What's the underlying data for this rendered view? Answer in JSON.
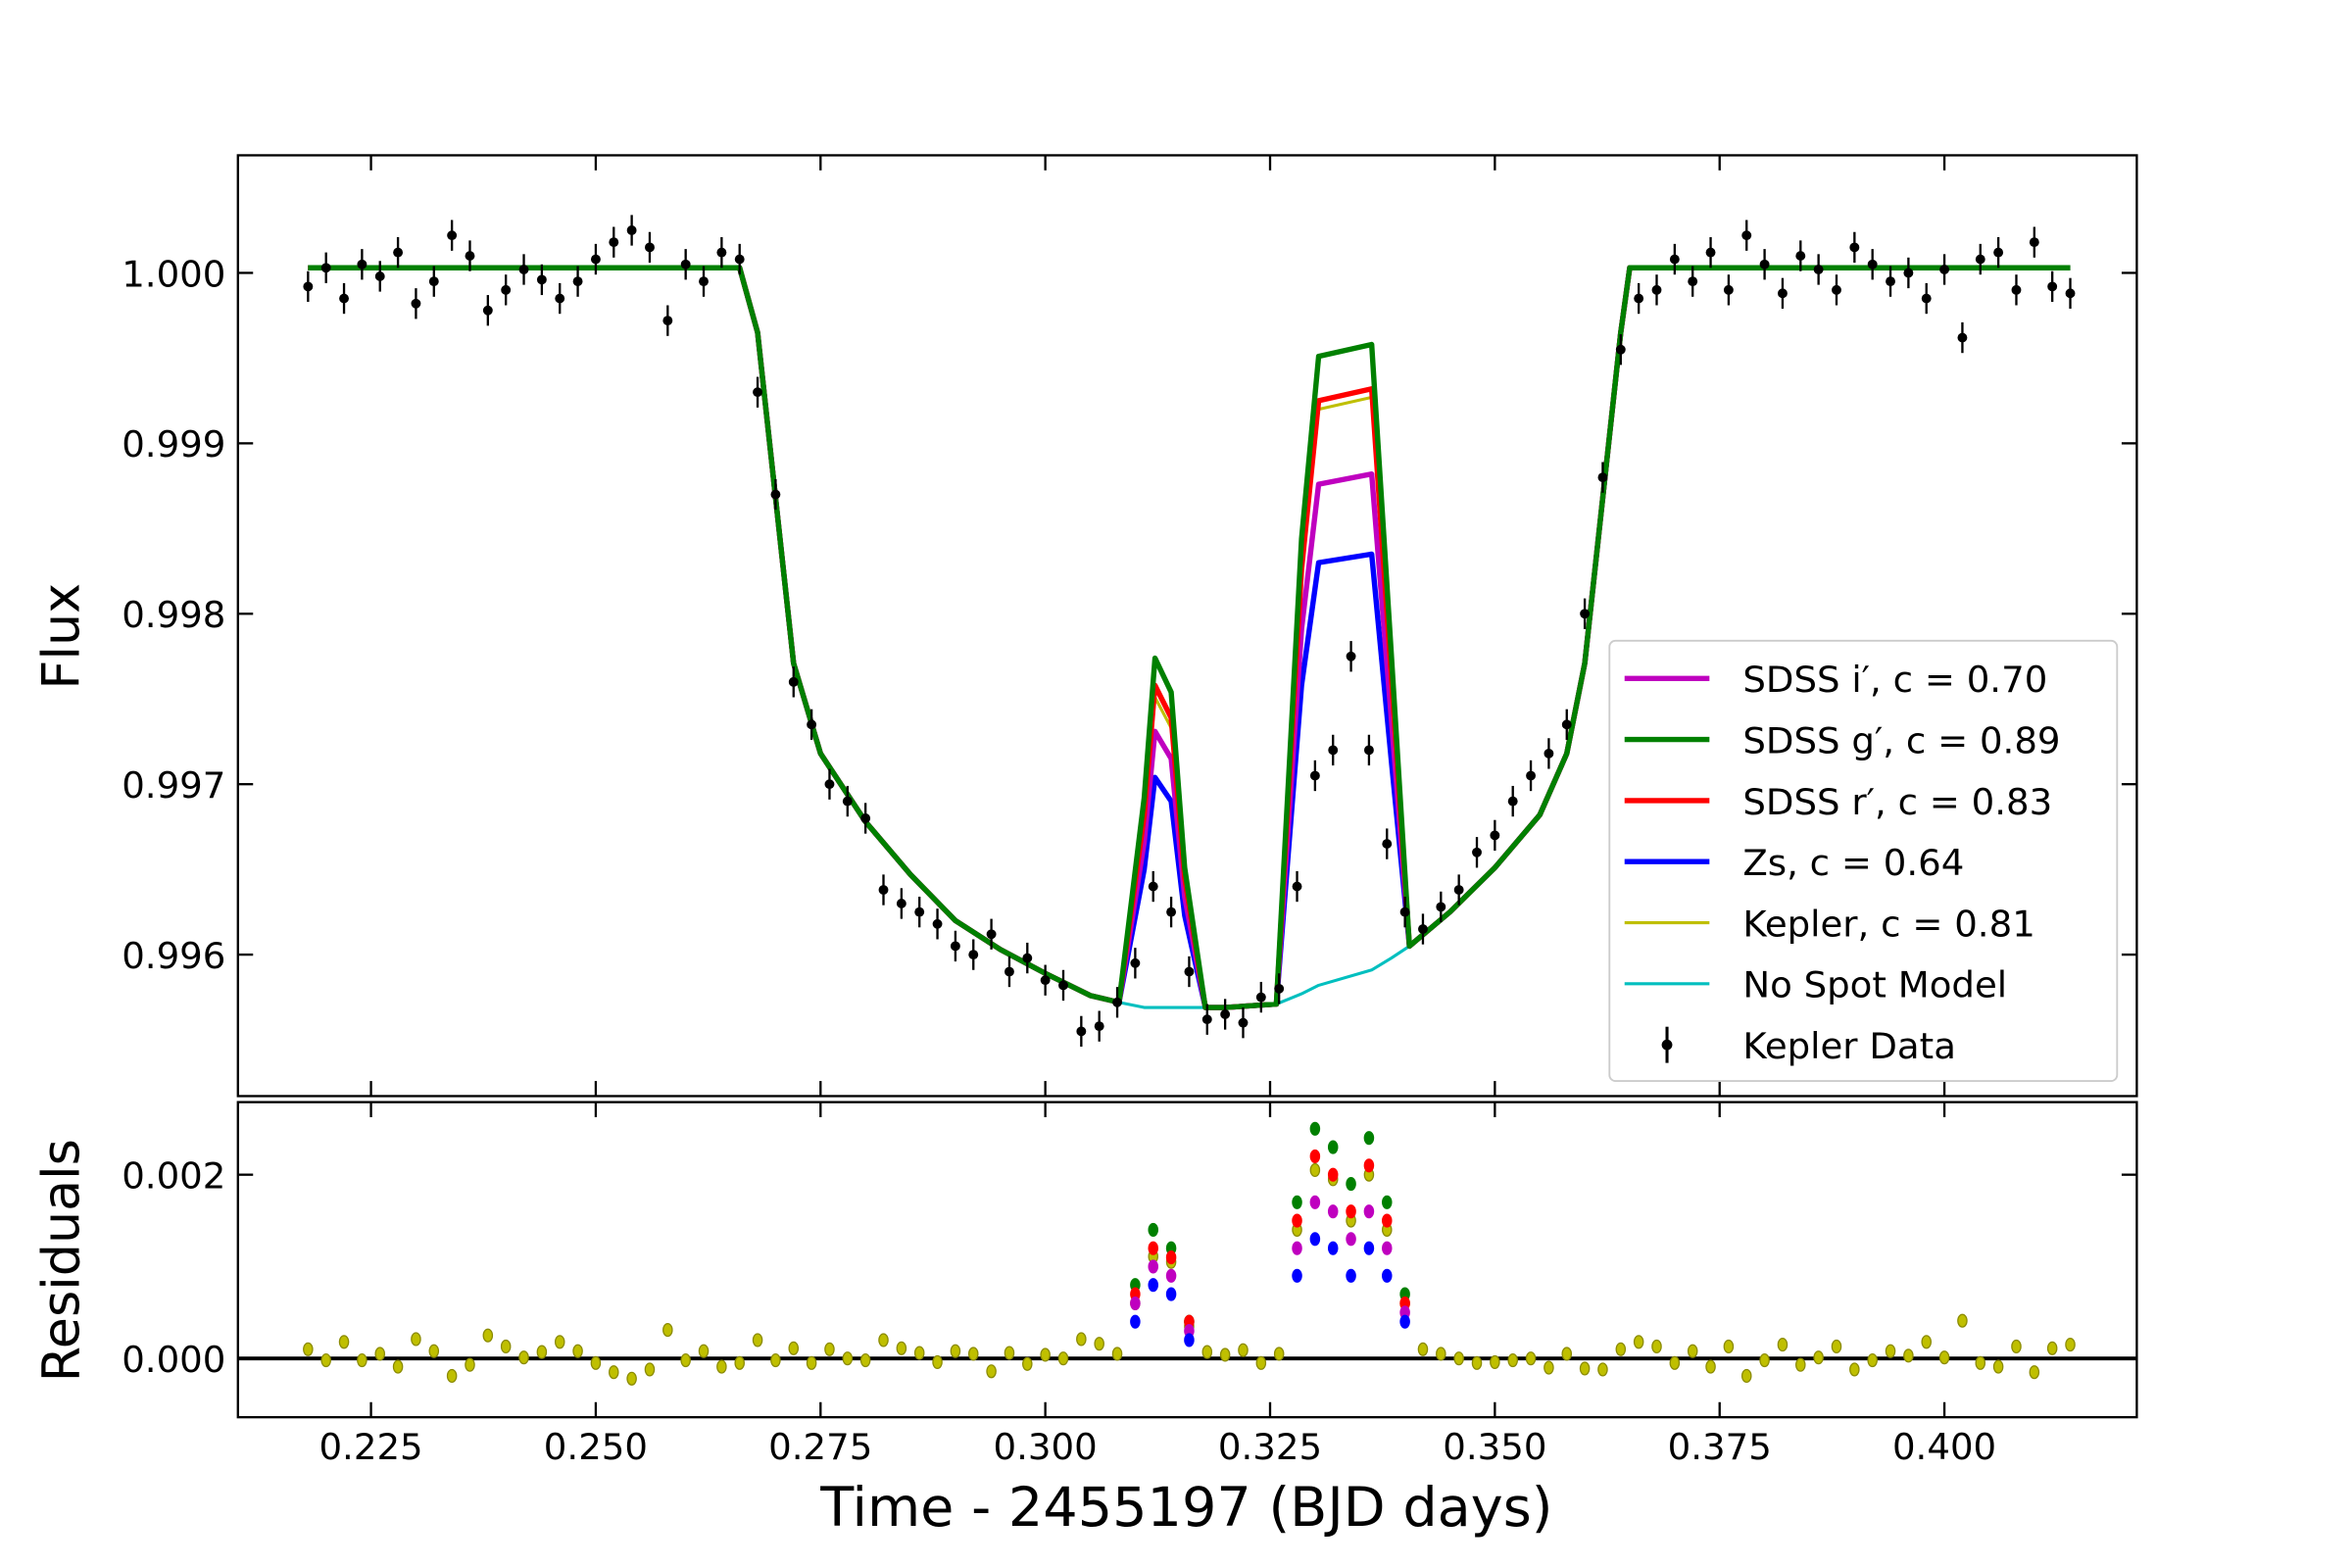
{
  "chart_data": [
    {
      "type": "line",
      "ylabel": "Flux",
      "xlim": [
        0.2102,
        0.4214
      ],
      "ylim": [
        0.99517,
        1.00069
      ],
      "xticks": [
        0.225,
        0.25,
        0.275,
        0.3,
        0.325,
        0.35,
        0.375,
        0.4
      ],
      "xticklabels": false,
      "yticks": [
        {
          "value": 0.996,
          "label": "0.996"
        },
        {
          "value": 0.997,
          "label": "0.997"
        },
        {
          "value": 0.998,
          "label": "0.998"
        },
        {
          "value": 0.999,
          "label": "0.999"
        },
        {
          "value": 1.0,
          "label": "1.000"
        }
      ],
      "legend": "lower right",
      "x": [
        0.218,
        0.266,
        0.268,
        0.27,
        0.272,
        0.275,
        0.28,
        0.285,
        0.29,
        0.295,
        0.3,
        0.305,
        0.3082,
        0.311,
        0.3122,
        0.314,
        0.3155,
        0.3178,
        0.32,
        0.3257,
        0.3285,
        0.3304,
        0.3363,
        0.3385,
        0.3405,
        0.345,
        0.35,
        0.355,
        0.358,
        0.36,
        0.362,
        0.364,
        0.365,
        0.414
      ],
      "series": [
        {
          "name": "SDSS i′, c = 0.70",
          "type": "line",
          "color": "#bf00bf",
          "linewidth": 3.5,
          "values": [
            1.00003,
            1.00003,
            0.99965,
            0.99868,
            0.99771,
            0.99718,
            0.99678,
            0.99647,
            0.9962,
            0.99603,
            0.99589,
            0.99576,
            0.99572,
            0.99666,
            0.99731,
            0.99715,
            0.99634,
            0.99569,
            0.99569,
            0.99571,
            0.99791,
            0.99876,
            0.99882,
            0.99737,
            0.99605,
            0.99625,
            0.99651,
            0.99682,
            0.99718,
            0.99771,
            0.99868,
            0.99965,
            1.00003,
            1.00003
          ]
        },
        {
          "name": "SDSS g′, c = 0.89",
          "type": "line",
          "color": "#008000",
          "linewidth": 3.5,
          "values": [
            1.00003,
            1.00003,
            0.99965,
            0.99868,
            0.99771,
            0.99718,
            0.99678,
            0.99647,
            0.9962,
            0.99603,
            0.99589,
            0.99576,
            0.99572,
            0.99692,
            0.99774,
            0.99754,
            0.99651,
            0.99569,
            0.99569,
            0.99571,
            0.99844,
            0.99951,
            0.99958,
            0.99775,
            0.99605,
            0.99625,
            0.99651,
            0.99682,
            0.99718,
            0.99771,
            0.99868,
            0.99965,
            1.00003,
            1.00003
          ]
        },
        {
          "name": "SDSS r′, c = 0.83",
          "type": "line",
          "color": "#ff0000",
          "linewidth": 3.5,
          "values": [
            1.00003,
            1.00003,
            0.99965,
            0.99868,
            0.99771,
            0.99718,
            0.99678,
            0.99647,
            0.9962,
            0.99603,
            0.99589,
            0.99576,
            0.99572,
            0.99682,
            0.99758,
            0.99739,
            0.99645,
            0.99569,
            0.99569,
            0.99571,
            0.99826,
            0.99925,
            0.99932,
            0.99762,
            0.99605,
            0.99625,
            0.99651,
            0.99682,
            0.99718,
            0.99771,
            0.99868,
            0.99965,
            1.00003,
            1.00003
          ]
        },
        {
          "name": "Zs, c = 0.64",
          "type": "line",
          "color": "#0000ff",
          "linewidth": 3.5,
          "values": [
            1.00003,
            1.00003,
            0.99965,
            0.99868,
            0.99771,
            0.99718,
            0.99678,
            0.99647,
            0.9962,
            0.99603,
            0.99589,
            0.99576,
            0.99572,
            0.9965,
            0.99704,
            0.9969,
            0.99623,
            0.99569,
            0.99569,
            0.99571,
            0.99758,
            0.9983,
            0.99835,
            0.99713,
            0.99605,
            0.99625,
            0.99651,
            0.99682,
            0.99718,
            0.99771,
            0.99868,
            0.99965,
            1.00003,
            1.00003
          ]
        },
        {
          "name": "Kepler, c = 0.81",
          "type": "line",
          "color": "#bfbf00",
          "linewidth": 2,
          "values": [
            1.00003,
            1.00003,
            0.99965,
            0.99868,
            0.99771,
            0.99718,
            0.99678,
            0.99647,
            0.9962,
            0.99603,
            0.99589,
            0.99576,
            0.99572,
            0.99678,
            0.99751,
            0.99733,
            0.99642,
            0.99569,
            0.99569,
            0.99571,
            0.99822,
            0.9992,
            0.99927,
            0.99759,
            0.99605,
            0.99625,
            0.99651,
            0.99682,
            0.99718,
            0.99771,
            0.99868,
            0.99965,
            1.00003,
            1.00003
          ]
        },
        {
          "name": "No Spot Model",
          "type": "line",
          "color": "#00bfbf",
          "linewidth": 2,
          "values": [
            1.00003,
            1.00003,
            0.99965,
            0.99868,
            0.99771,
            0.99718,
            0.99678,
            0.99647,
            0.9962,
            0.99603,
            0.99589,
            0.99576,
            0.99572,
            0.99569,
            0.99569,
            0.99569,
            0.99569,
            0.99569,
            0.99569,
            0.99571,
            0.99577,
            0.99582,
            0.99591,
            0.99598,
            0.99605,
            0.99625,
            0.99651,
            0.99682,
            0.99718,
            0.99771,
            0.99868,
            0.99965,
            1.00003,
            1.00003
          ]
        },
        {
          "name": "Kepler Data",
          "type": "errorbar",
          "color": "#000000",
          "yerr": 9e-05,
          "x": [
            0.218,
            0.22,
            0.222,
            0.224,
            0.226,
            0.228,
            0.23,
            0.232,
            0.234,
            0.236,
            0.238,
            0.24,
            0.242,
            0.244,
            0.246,
            0.248,
            0.25,
            0.252,
            0.254,
            0.256,
            0.258,
            0.26,
            0.262,
            0.264,
            0.266,
            0.268,
            0.27,
            0.272,
            0.274,
            0.276,
            0.278,
            0.28,
            0.282,
            0.284,
            0.286,
            0.288,
            0.29,
            0.292,
            0.294,
            0.296,
            0.298,
            0.3,
            0.302,
            0.304,
            0.306,
            0.308,
            0.31,
            0.312,
            0.314,
            0.316,
            0.318,
            0.32,
            0.322,
            0.324,
            0.326,
            0.328,
            0.33,
            0.332,
            0.334,
            0.336,
            0.338,
            0.34,
            0.342,
            0.344,
            0.346,
            0.348,
            0.35,
            0.352,
            0.354,
            0.356,
            0.358,
            0.36,
            0.362,
            0.364,
            0.366,
            0.368,
            0.37,
            0.372,
            0.374,
            0.376,
            0.378,
            0.38,
            0.382,
            0.384,
            0.386,
            0.388,
            0.39,
            0.392,
            0.394,
            0.396,
            0.398,
            0.4,
            0.402,
            0.404,
            0.406,
            0.408,
            0.41,
            0.412,
            0.414
          ],
          "values": [
            0.99992,
            1.00003,
            0.99985,
            1.00005,
            0.99998,
            1.00012,
            0.99982,
            0.99995,
            1.00022,
            1.0001,
            0.99978,
            0.9999,
            1.00002,
            0.99996,
            0.99985,
            0.99995,
            1.00008,
            1.00018,
            1.00025,
            1.00015,
            0.99972,
            1.00005,
            0.99995,
            1.00012,
            1.00008,
            0.9993,
            0.9987,
            0.9976,
            0.99735,
            0.997,
            0.9969,
            0.9968,
            0.99638,
            0.9963,
            0.99625,
            0.99618,
            0.99605,
            0.996,
            0.99612,
            0.9959,
            0.99598,
            0.99585,
            0.99582,
            0.99555,
            0.99558,
            0.99572,
            0.99595,
            0.9964,
            0.99625,
            0.9959,
            0.99562,
            0.99565,
            0.9956,
            0.99575,
            0.9958,
            0.9964,
            0.99705,
            0.9972,
            0.99775,
            0.9972,
            0.99665,
            0.99625,
            0.99615,
            0.99628,
            0.99638,
            0.9966,
            0.9967,
            0.9969,
            0.99705,
            0.99718,
            0.99735,
            0.998,
            0.9988,
            0.99955,
            0.99985,
            0.9999,
            1.00008,
            0.99995,
            1.00012,
            0.9999,
            1.00022,
            1.00005,
            0.99988,
            1.0001,
            1.00002,
            0.9999,
            1.00015,
            1.00005,
            0.99995,
            1.0,
            0.99985,
            1.00002,
            0.99962,
            1.00008,
            1.00012,
            0.9999,
            1.00018,
            0.99992,
            0.99988
          ]
        }
      ]
    },
    {
      "type": "scatter",
      "xlabel": "Time - 2455197 (BJD days)",
      "ylabel": "Residuals",
      "xlim": [
        0.2102,
        0.4214
      ],
      "ylim": [
        -0.00064,
        0.00279
      ],
      "xticks": [
        {
          "value": 0.225,
          "label": "0.225"
        },
        {
          "value": 0.25,
          "label": "0.250"
        },
        {
          "value": 0.275,
          "label": "0.275"
        },
        {
          "value": 0.3,
          "label": "0.300"
        },
        {
          "value": 0.325,
          "label": "0.325"
        },
        {
          "value": 0.35,
          "label": "0.350"
        },
        {
          "value": 0.375,
          "label": "0.375"
        },
        {
          "value": 0.4,
          "label": "0.400"
        }
      ],
      "yticks": [
        {
          "value": 0,
          "label": "0.000"
        },
        {
          "value": 0.002,
          "label": "0.002"
        }
      ],
      "hline": 0,
      "series": [
        {
          "color": "#bfbf00",
          "x": [
            0.218,
            0.22,
            0.222,
            0.224,
            0.226,
            0.228,
            0.23,
            0.232,
            0.234,
            0.236,
            0.238,
            0.24,
            0.242,
            0.244,
            0.246,
            0.248,
            0.25,
            0.252,
            0.254,
            0.256,
            0.258,
            0.26,
            0.262,
            0.264,
            0.266,
            0.268,
            0.27,
            0.272,
            0.274,
            0.276,
            0.278,
            0.28,
            0.282,
            0.284,
            0.286,
            0.288,
            0.29,
            0.292,
            0.294,
            0.296,
            0.298,
            0.3,
            0.302,
            0.304,
            0.306,
            0.308,
            0.31,
            0.312,
            0.314,
            0.316,
            0.318,
            0.32,
            0.322,
            0.324,
            0.326,
            0.328,
            0.33,
            0.332,
            0.334,
            0.336,
            0.338,
            0.34,
            0.342,
            0.344,
            0.346,
            0.348,
            0.35,
            0.352,
            0.354,
            0.356,
            0.358,
            0.36,
            0.362,
            0.364,
            0.366,
            0.368,
            0.37,
            0.372,
            0.374,
            0.376,
            0.378,
            0.38,
            0.382,
            0.384,
            0.386,
            0.388,
            0.39,
            0.392,
            0.394,
            0.396,
            0.398,
            0.4,
            0.402,
            0.404,
            0.406,
            0.408,
            0.41,
            0.412,
            0.414
          ],
          "values": [
            0.0001,
            -2e-05,
            0.00018,
            -2e-05,
            5e-05,
            -9e-05,
            0.00021,
            8e-05,
            -0.00019,
            -7e-05,
            0.00025,
            0.00013,
            1e-05,
            7e-05,
            0.00018,
            8e-05,
            -5e-05,
            -0.00015,
            -0.00022,
            -0.00012,
            0.00031,
            -2e-05,
            8e-05,
            -9e-05,
            -5e-05,
            0.0002,
            -2e-05,
            0.00011,
            -5e-05,
            0.0001,
            0.0,
            -2e-05,
            0.0002,
            0.00011,
            6e-05,
            -4e-05,
            8e-05,
            5e-05,
            -0.00014,
            6e-05,
            -6e-05,
            4e-05,
            0.0,
            0.00021,
            0.00016,
            5e-05,
            0.0006,
            0.00111,
            0.00105,
            0.00035,
            7e-05,
            4e-05,
            9e-05,
            -5e-05,
            5e-05,
            0.0014,
            0.00205,
            0.00195,
            0.0015,
            0.002,
            0.0014,
            0.0006,
            0.0001,
            5e-05,
            0.0,
            -5e-05,
            -4e-05,
            -2e-05,
            0.0,
            -0.0001,
            5e-05,
            -0.00011,
            -0.00012,
            0.0001,
            0.00018,
            0.00013,
            -5e-05,
            8e-05,
            -9e-05,
            0.00013,
            -0.00019,
            -2e-05,
            0.00015,
            -7e-05,
            1e-05,
            0.00013,
            -0.00012,
            -2e-05,
            8e-05,
            3e-05,
            0.00018,
            1e-05,
            0.00041,
            -5e-05,
            -9e-05,
            0.00013,
            -0.00015,
            0.00011,
            0.00015
          ]
        },
        {
          "color": "#008000",
          "x": [
            0.31,
            0.312,
            0.314,
            0.316,
            0.328,
            0.33,
            0.332,
            0.334,
            0.336,
            0.338,
            0.34
          ],
          "values": [
            0.0008,
            0.0014,
            0.0012,
            0.0004,
            0.0017,
            0.0025,
            0.0023,
            0.0019,
            0.0024,
            0.0017,
            0.0007
          ]
        },
        {
          "color": "#ff0000",
          "x": [
            0.31,
            0.312,
            0.314,
            0.316,
            0.328,
            0.33,
            0.332,
            0.334,
            0.336,
            0.338,
            0.34
          ],
          "values": [
            0.0007,
            0.0012,
            0.0011,
            0.0004,
            0.0015,
            0.0022,
            0.002,
            0.0016,
            0.0021,
            0.0015,
            0.0006
          ]
        },
        {
          "color": "#bf00bf",
          "x": [
            0.31,
            0.312,
            0.314,
            0.316,
            0.328,
            0.33,
            0.332,
            0.334,
            0.336,
            0.338,
            0.34
          ],
          "values": [
            0.0006,
            0.001,
            0.0009,
            0.0003,
            0.0012,
            0.0017,
            0.0016,
            0.0013,
            0.0016,
            0.0012,
            0.0005
          ]
        },
        {
          "color": "#0000ff",
          "x": [
            0.31,
            0.312,
            0.314,
            0.316,
            0.328,
            0.33,
            0.332,
            0.334,
            0.336,
            0.338,
            0.34
          ],
          "values": [
            0.0004,
            0.0008,
            0.0007,
            0.0002,
            0.0009,
            0.0013,
            0.0012,
            0.0009,
            0.0012,
            0.0009,
            0.0004
          ]
        }
      ]
    }
  ]
}
